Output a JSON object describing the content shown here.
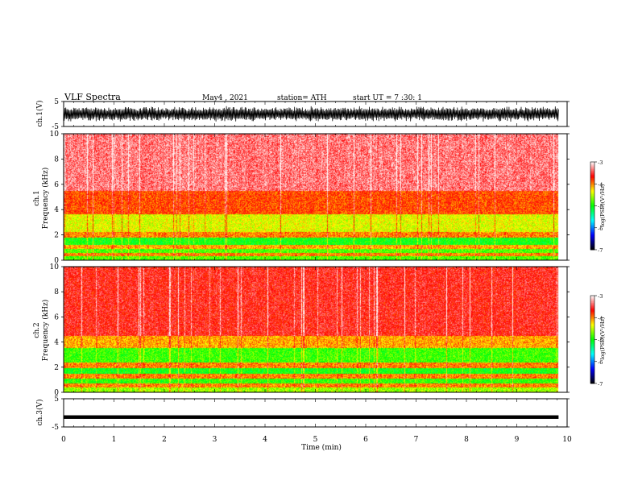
{
  "header": {
    "title": "VLF  Spectra",
    "date": "May4  , 2021",
    "station": "station= ATH",
    "start": "start  UT  =    7  :30: 1"
  },
  "x_axis": {
    "label": "Time  (min)",
    "min": 0,
    "max": 10,
    "ticks": [
      "0",
      "1",
      "2",
      "3",
      "4",
      "5",
      "6",
      "7",
      "8",
      "9",
      "10"
    ],
    "data_end": 9.83
  },
  "panels": {
    "ch1_wave": {
      "ylabel": "ch.1(V)",
      "ymin": -5,
      "ymax": 5,
      "ticks": [
        "5",
        "-5"
      ],
      "envelope": 3.2
    },
    "ch1_spec": {
      "ylabel": "Frequency  (kHz)",
      "ch": "ch.1",
      "ymin": 0,
      "ymax": 10,
      "ticks": [
        "0",
        "2",
        "4",
        "6",
        "8",
        "10"
      ],
      "bands": [
        {
          "f0": 0.0,
          "f1": 0.35,
          "v": -4.8
        },
        {
          "f0": 0.35,
          "f1": 0.6,
          "v": -4.0
        },
        {
          "f0": 0.6,
          "f1": 0.9,
          "v": -4.8
        },
        {
          "f0": 0.9,
          "f1": 1.2,
          "v": -4.1
        },
        {
          "f0": 1.2,
          "f1": 1.8,
          "v": -5.0
        },
        {
          "f0": 1.8,
          "f1": 2.2,
          "v": -4.0
        },
        {
          "f0": 2.2,
          "f1": 3.6,
          "v": -4.4
        },
        {
          "f0": 3.6,
          "f1": 5.5,
          "v": -3.85
        },
        {
          "f0": 5.5,
          "f1": 10.0,
          "v": -3.35
        }
      ]
    },
    "ch2_spec": {
      "ylabel": "Frequency  (kHz)",
      "ch": "ch.2",
      "ymin": 0,
      "ymax": 10,
      "ticks": [
        "0",
        "2",
        "4",
        "6",
        "8",
        "10"
      ],
      "bands": [
        {
          "f0": 0.0,
          "f1": 0.4,
          "v": -4.6
        },
        {
          "f0": 0.4,
          "f1": 0.7,
          "v": -4.0
        },
        {
          "f0": 0.7,
          "f1": 1.1,
          "v": -4.9
        },
        {
          "f0": 1.1,
          "f1": 1.5,
          "v": -4.0
        },
        {
          "f0": 1.5,
          "f1": 1.9,
          "v": -5.0
        },
        {
          "f0": 1.9,
          "f1": 2.4,
          "v": -4.0
        },
        {
          "f0": 2.4,
          "f1": 3.5,
          "v": -4.85
        },
        {
          "f0": 3.5,
          "f1": 4.5,
          "v": -4.1
        },
        {
          "f0": 4.5,
          "f1": 10.0,
          "v": -3.6
        }
      ]
    },
    "ch3_wave": {
      "ylabel": "ch.3(V)",
      "ymin": -5,
      "ymax": 5,
      "ticks": [
        "5",
        "-5"
      ],
      "level": -1.5
    }
  },
  "colorbar": {
    "label": "log(PSD)(V²/Hz)",
    "min": -7,
    "max": -3,
    "ticks": [
      "-3",
      "-4",
      "-5",
      "-6",
      "-7"
    ],
    "colors": [
      "#000000",
      "#0000ff",
      "#00ffff",
      "#00ff00",
      "#ffff00",
      "#ff0000",
      "#ffffff"
    ]
  },
  "chart_data": [
    {
      "type": "line",
      "title": "ch.1(V)",
      "xlabel": "Time  (min)",
      "ylabel": "ch.1(V)",
      "xlim": [
        0,
        10
      ],
      "ylim": [
        -5,
        5
      ]
    },
    {
      "type": "heatmap",
      "title": "ch.1",
      "xlabel": "Time  (min)",
      "ylabel": "Frequency  (kHz)",
      "xlim": [
        0,
        10
      ],
      "ylim": [
        0,
        10
      ],
      "colorbar_range": [
        -7,
        -3
      ]
    },
    {
      "type": "heatmap",
      "title": "ch.2",
      "xlabel": "Time  (min)",
      "ylabel": "Frequency  (kHz)",
      "xlim": [
        0,
        10
      ],
      "ylim": [
        0,
        10
      ],
      "colorbar_range": [
        -7,
        -3
      ]
    },
    {
      "type": "line",
      "title": "ch.3(V)",
      "xlabel": "Time  (min)",
      "ylabel": "ch.3(V)",
      "xlim": [
        0,
        10
      ],
      "ylim": [
        -5,
        5
      ]
    }
  ]
}
